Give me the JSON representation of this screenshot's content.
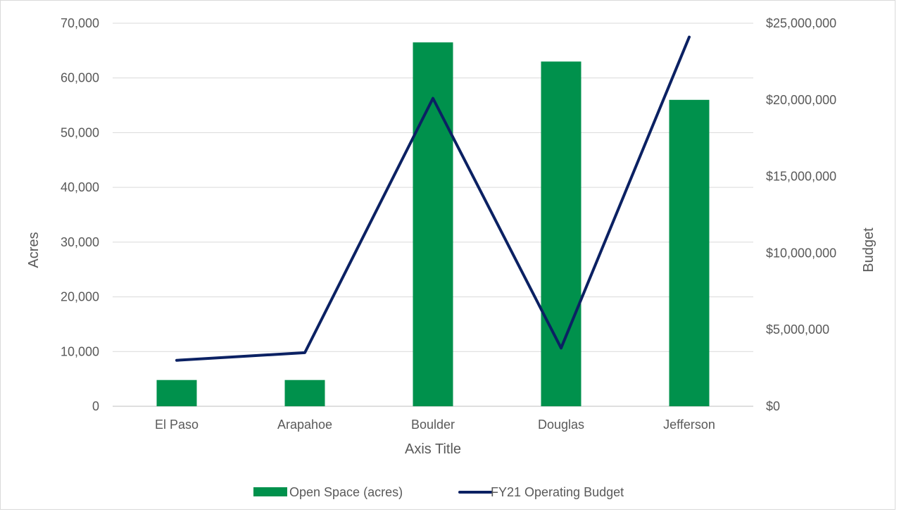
{
  "chart_data": {
    "type": "bar",
    "categories": [
      "El Paso",
      "Arapahoe",
      "Boulder",
      "Douglas",
      "Jefferson"
    ],
    "series": [
      {
        "name": "Open Space (acres)",
        "type": "bar",
        "axis": "left",
        "color": "#00914c",
        "values": [
          4800,
          4800,
          66500,
          63000,
          56000
        ]
      },
      {
        "name": "FY21 Operating Budget",
        "type": "line",
        "axis": "right",
        "color": "#0b2163",
        "values": [
          3000000,
          3500000,
          20100000,
          3800000,
          24100000
        ]
      }
    ],
    "xlabel": "Axis Title",
    "ylabel": "Acres",
    "y2label": "Budget",
    "ylim": [
      0,
      70000
    ],
    "y2lim": [
      0,
      25000000
    ],
    "yticks": [
      "0",
      "10,000",
      "20,000",
      "30,000",
      "40,000",
      "50,000",
      "60,000",
      "70,000"
    ],
    "y2ticks": [
      "$0",
      "$5,000,000",
      "$10,000,000",
      "$15,000,000",
      "$20,000,000",
      "$25,000,000"
    ],
    "grid": true,
    "legend": "bottom"
  }
}
